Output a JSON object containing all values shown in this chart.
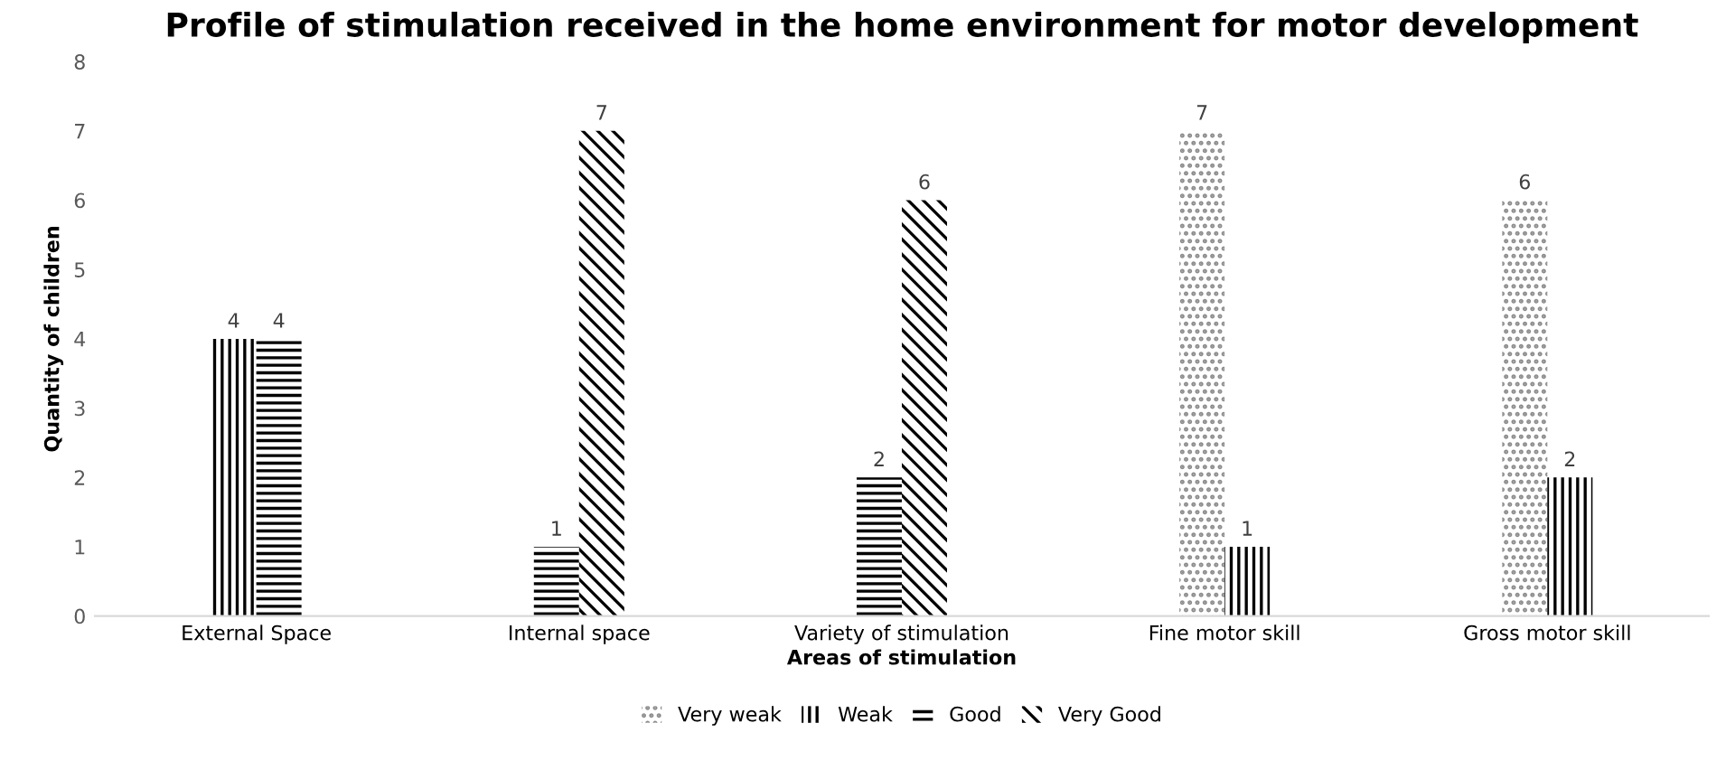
{
  "chart_data": {
    "type": "bar",
    "title": "Profile of stimulation received in the home environment for motor development",
    "xlabel": "Areas of stimulation",
    "ylabel": "Quantity of children",
    "categories": [
      "External Space",
      "Internal space",
      "Variety of stimulation",
      "Fine motor skill",
      "Gross motor skill"
    ],
    "series": [
      {
        "name": "Very weak",
        "color": "#8c8c8c",
        "values": [
          null,
          null,
          null,
          7,
          6
        ]
      },
      {
        "name": "Weak",
        "color": "#000000",
        "values": [
          4,
          null,
          null,
          1,
          2
        ]
      },
      {
        "name": "Good",
        "color": "#000000",
        "values": [
          4,
          1,
          2,
          null,
          null
        ]
      },
      {
        "name": "Very Good",
        "color": "#000000",
        "values": [
          null,
          7,
          6,
          null,
          null
        ]
      }
    ],
    "ylim": [
      0,
      8
    ],
    "yticks": [
      0,
      1,
      2,
      3,
      4,
      5,
      6,
      7,
      8
    ],
    "grid": false,
    "legend": "bottom",
    "data_labels": true
  }
}
